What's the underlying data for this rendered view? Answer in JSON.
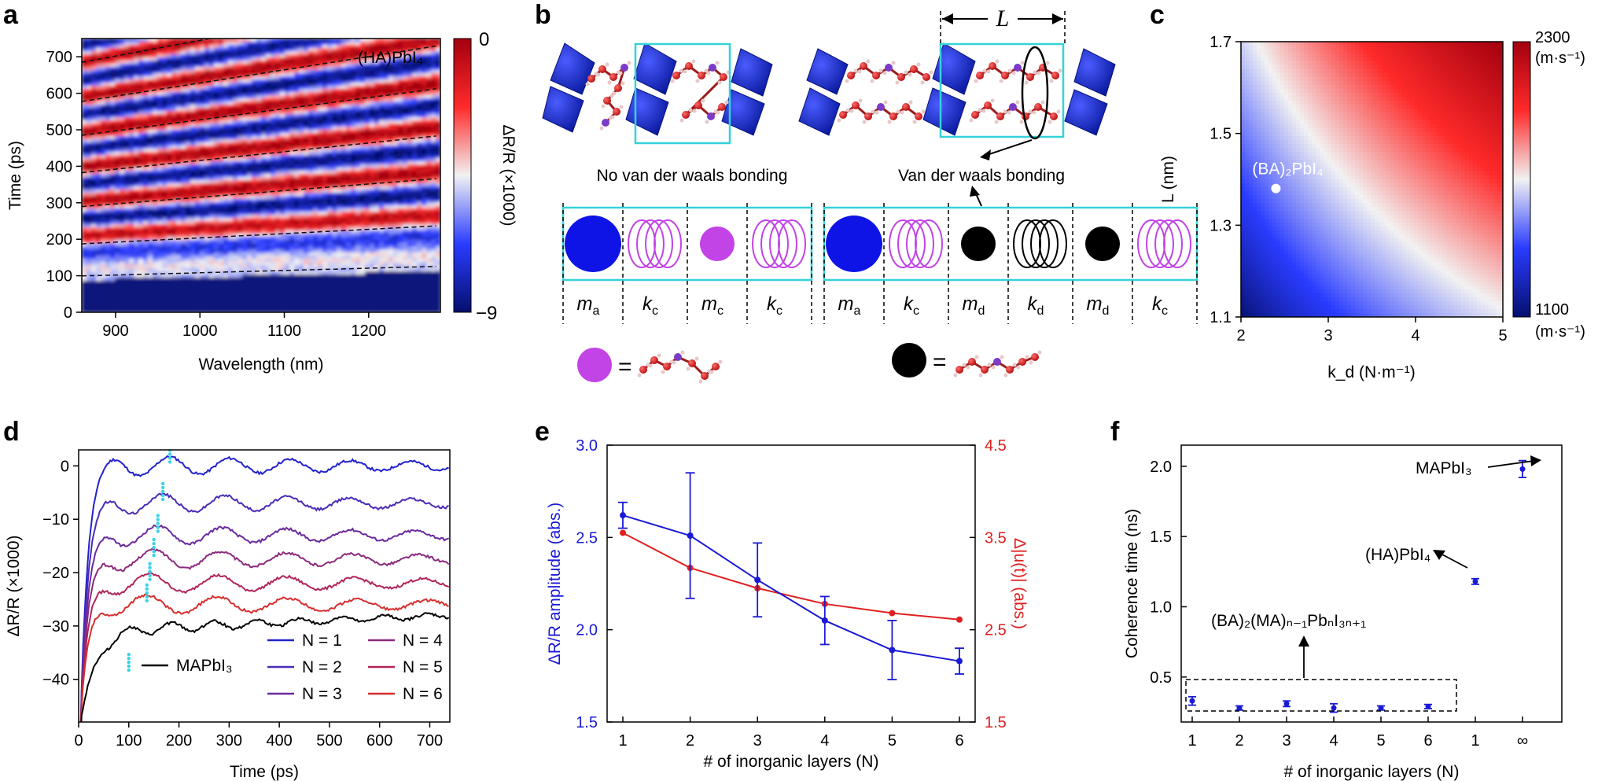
{
  "panel_labels": [
    "a",
    "b",
    "c",
    "d",
    "e",
    "f"
  ],
  "panel_a": {
    "xlabel": "Wavelength (nm)",
    "ylabel": "Time (ps)",
    "xticks": [
      "900",
      "1000",
      "1100",
      "1200"
    ],
    "yticks": [
      "0",
      "100",
      "200",
      "300",
      "400",
      "500",
      "600",
      "700"
    ],
    "annotation": "(HA)PbI₄",
    "colorbar_label": "ΔR/R (×1000)",
    "colorbar_max": "0",
    "colorbar_min": "−9"
  },
  "panel_b": {
    "left_caption": "No van der waals bonding",
    "right_caption": "Van der waals bonding",
    "length_label": "L",
    "left_cells": [
      "m",
      "k",
      "m",
      "k"
    ],
    "left_subs": [
      "a",
      "c",
      "c",
      "c"
    ],
    "right_cells": [
      "m",
      "k",
      "m",
      "k",
      "m",
      "k"
    ],
    "right_subs": [
      "a",
      "c",
      "d",
      "d",
      "d",
      "c"
    ],
    "equals": "="
  },
  "panel_c": {
    "xlabel": "k_d (N·m⁻¹)",
    "ylabel": "L (nm)",
    "xticks": [
      "2",
      "3",
      "4",
      "5"
    ],
    "yticks": [
      "1.1",
      "1.3",
      "1.5",
      "1.7"
    ],
    "point_label": "(BA)₂PbI₄",
    "colorbar_max": "2300",
    "colorbar_min": "1100",
    "colorbar_unit": "(m·s⁻¹)"
  },
  "panel_d": {
    "xlabel": "Time (ps)",
    "ylabel": "ΔR/R (×1000)",
    "xticks": [
      "0",
      "100",
      "200",
      "300",
      "400",
      "500",
      "600",
      "700"
    ],
    "yticks": [
      "0",
      "−10",
      "−20",
      "−30",
      "−40"
    ],
    "legend": [
      "MAPbI₃",
      "N = 1",
      "N = 2",
      "N = 3",
      "N = 4",
      "N = 5",
      "N = 6"
    ]
  },
  "panel_e": {
    "xlabel": "# of inorganic layers (N)",
    "ylabel_left": "ΔR/R amplitude (abs.)",
    "ylabel_right": "Δ|u(t)| (abs.)",
    "xticks": [
      "1",
      "2",
      "3",
      "4",
      "5",
      "6"
    ],
    "yticks_left": [
      "1.5",
      "2.0",
      "2.5",
      "3.0"
    ],
    "yticks_right": [
      "1.5",
      "2.5",
      "3.5",
      "4.5"
    ]
  },
  "panel_f": {
    "xlabel": "# of inorganic layers (N)",
    "ylabel": "Coherence time (ns)",
    "xticks": [
      "1",
      "2",
      "3",
      "4",
      "5",
      "6",
      "1",
      "∞"
    ],
    "yticks": [
      "0.5",
      "1.0",
      "1.5",
      "2.0"
    ],
    "label_mapbi3": "MAPbI₃",
    "label_ha": "(HA)PbI₄",
    "label_ba": "(BA)₂(MA)ₙ₋₁PbₙI₃ₙ₊₁"
  },
  "chart_data": [
    {
      "panel": "a",
      "type": "heatmap",
      "xlabel": "Wavelength (nm)",
      "ylabel": "Time (ps)",
      "xlim": [
        860,
        1285
      ],
      "ylim": [
        0,
        750
      ],
      "colorbar_range": [
        -9,
        0
      ],
      "oscillation_bands_time_at_900nm": [
        120,
        210,
        315,
        410,
        515,
        610,
        720
      ],
      "colors": {
        "high": "#d7191c",
        "mid": "#f0f0f0",
        "low": "#0a1a8a"
      }
    },
    {
      "panel": "c",
      "type": "heatmap",
      "xlabel": "k_d (N·m⁻¹)",
      "ylabel": "L (nm)",
      "xlim": [
        2,
        5
      ],
      "ylim": [
        1.1,
        1.7
      ],
      "colorbar_range": [
        1100,
        2300
      ],
      "point": {
        "label": "(BA)₂PbI₄",
        "x": 2.4,
        "y": 1.38
      }
    },
    {
      "panel": "d",
      "type": "line",
      "xlabel": "Time (ps)",
      "ylabel": "ΔR/R (×1000)",
      "xlim": [
        0,
        740
      ],
      "ylim": [
        -48,
        3
      ],
      "series": [
        {
          "name": "N = 1",
          "color": "#2222cc",
          "offset": 0,
          "marker_t": 182
        },
        {
          "name": "N = 2",
          "color": "#4b2bb8",
          "offset": -7,
          "marker_t": 168
        },
        {
          "name": "N = 3",
          "color": "#6a2a9e",
          "offset": -13,
          "marker_t": 158
        },
        {
          "name": "N = 4",
          "color": "#8a2a7e",
          "offset": -17.5,
          "marker_t": 150
        },
        {
          "name": "N = 5",
          "color": "#b0245a",
          "offset": -22,
          "marker_t": 142
        },
        {
          "name": "N = 6",
          "color": "#d62f2f",
          "offset": -26,
          "marker_t": 136
        },
        {
          "name": "MAPbI₃",
          "color": "#000000",
          "offset": -31,
          "marker_t": 100
        }
      ]
    },
    {
      "panel": "e",
      "type": "line",
      "xlabel": "# of inorganic layers (N)",
      "x": [
        1,
        2,
        3,
        4,
        5,
        6
      ],
      "series": [
        {
          "name": "ΔR/R amplitude (abs.)",
          "axis": "left",
          "color": "#1a1ad6",
          "values": [
            2.62,
            2.51,
            2.27,
            2.05,
            1.89,
            1.83
          ],
          "errors": [
            0.07,
            0.34,
            0.2,
            0.13,
            0.16,
            0.07
          ]
        },
        {
          "name": "Δ|u(t)| (abs.)",
          "axis": "right",
          "color": "#e02020",
          "values": [
            3.55,
            3.17,
            2.95,
            2.78,
            2.68,
            2.61
          ]
        }
      ],
      "ylim_left": [
        1.5,
        3.0
      ],
      "ylim_right": [
        1.5,
        4.5
      ]
    },
    {
      "panel": "f",
      "type": "scatter",
      "xlabel": "# of inorganic layers (N)",
      "ylabel": "Coherence time (ns)",
      "categories": [
        "1",
        "2",
        "3",
        "4",
        "5",
        "6",
        "1",
        "∞"
      ],
      "values": [
        0.33,
        0.28,
        0.31,
        0.28,
        0.28,
        0.29,
        1.18,
        1.98
      ],
      "errors": [
        0.03,
        0.015,
        0.02,
        0.03,
        0.015,
        0.015,
        0.02,
        0.06
      ],
      "ylim": [
        0.18,
        2.15
      ]
    }
  ]
}
